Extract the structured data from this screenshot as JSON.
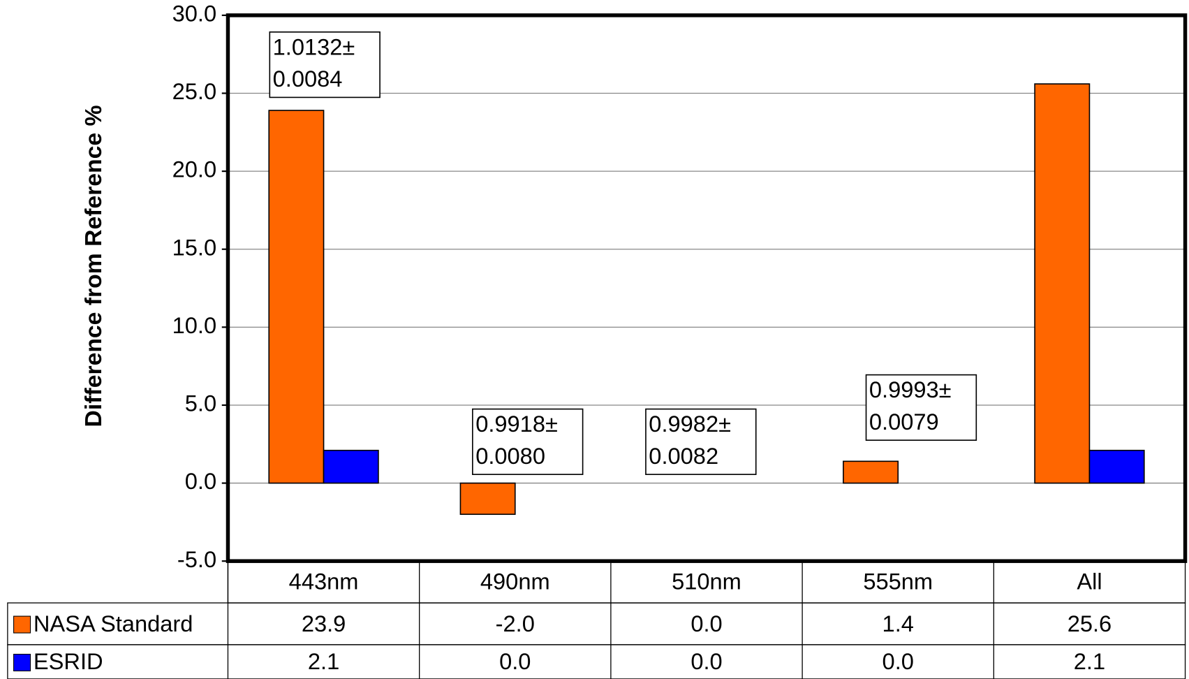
{
  "chart_data": {
    "type": "bar",
    "y_axis_label": "Difference from Reference %",
    "categories": [
      "443nm",
      "490nm",
      "510nm",
      "555nm",
      "All"
    ],
    "series": [
      {
        "name": "NASA Standard",
        "color": "#ff6600",
        "values": [
          23.9,
          -2.0,
          0.0,
          1.4,
          25.6
        ],
        "value_labels": [
          "23.9",
          "-2.0",
          "0.0",
          "1.4",
          "25.6"
        ]
      },
      {
        "name": "ESRID",
        "color": "#0000ff",
        "values": [
          2.1,
          0.0,
          0.0,
          0.0,
          2.1
        ],
        "value_labels": [
          "2.1",
          "0.0",
          "0.0",
          "0.0",
          "2.1"
        ]
      }
    ],
    "ylim": [
      -5,
      30
    ],
    "yticks": [
      {
        "value": -5,
        "label": "-5.0"
      },
      {
        "value": 0,
        "label": "0.0"
      },
      {
        "value": 5,
        "label": "5.0"
      },
      {
        "value": 10,
        "label": "10.0"
      },
      {
        "value": 15,
        "label": "15.0"
      },
      {
        "value": 20,
        "label": "20.0"
      },
      {
        "value": 25,
        "label": "25.0"
      },
      {
        "value": 30,
        "label": "30.0"
      }
    ],
    "grid": true,
    "annotations": [
      [
        "1.0132±",
        "0.0084"
      ],
      [
        "0.9918±",
        "0.0080"
      ],
      [
        "0.9982±",
        "0.0082"
      ],
      [
        "0.9993±",
        "0.0079"
      ]
    ]
  }
}
